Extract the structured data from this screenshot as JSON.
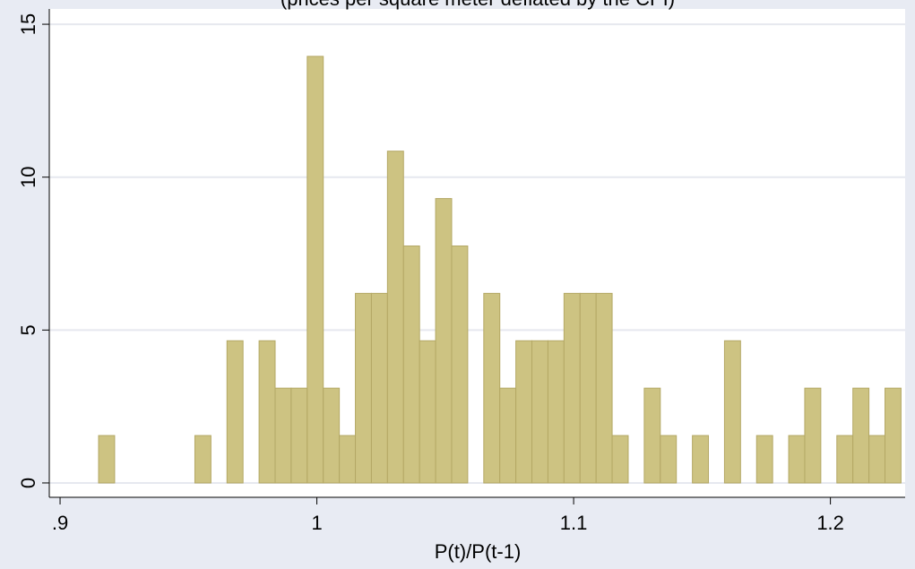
{
  "chart_data": {
    "type": "histogram",
    "subtitle": "(prices per square meter deflated by the CPI)",
    "x_label": "P(t)/P(t-1)",
    "bins": [
      0.915,
      0.92125,
      0.9275,
      0.93375,
      0.94,
      0.94625,
      0.9525,
      0.95875,
      0.965,
      0.97125,
      0.9775,
      0.98375,
      0.99,
      0.99625,
      1.0025,
      1.00875,
      1.015,
      1.02125,
      1.0275,
      1.03375,
      1.04,
      1.04625,
      1.0525,
      1.05875,
      1.065,
      1.07125,
      1.0775,
      1.08375,
      1.09,
      1.09625,
      1.1025,
      1.10875,
      1.115,
      1.12125,
      1.1275,
      1.13375,
      1.14,
      1.14625,
      1.1525,
      1.15875,
      1.165,
      1.17125,
      1.1775,
      1.18375,
      1.19,
      1.19625,
      1.2025,
      1.20875,
      1.215,
      1.22125,
      1.2275
    ],
    "values": [
      1.55,
      0,
      0,
      0,
      0,
      0,
      1.55,
      0,
      4.65,
      0,
      4.65,
      3.1,
      3.1,
      13.95,
      3.1,
      1.55,
      6.2,
      6.2,
      10.85,
      7.75,
      4.65,
      9.3,
      7.75,
      0,
      6.2,
      3.1,
      4.65,
      4.65,
      4.65,
      6.2,
      6.2,
      6.2,
      1.55,
      0,
      3.1,
      1.55,
      0,
      1.55,
      0,
      4.65,
      0,
      1.55,
      0,
      1.55,
      3.1,
      0,
      1.55,
      3.1,
      1.55,
      3.1
    ],
    "color": "#cdc382",
    "edge_color": "#b4a865",
    "xlim": [
      0.8958,
      1.2291
    ],
    "ylim": [
      -0.47,
      15.5
    ],
    "xticks": [
      {
        "value": 0.9,
        "label": ".9"
      },
      1,
      1.1,
      1.2
    ],
    "yticks": [
      0,
      5,
      10,
      15
    ],
    "grid": true
  }
}
